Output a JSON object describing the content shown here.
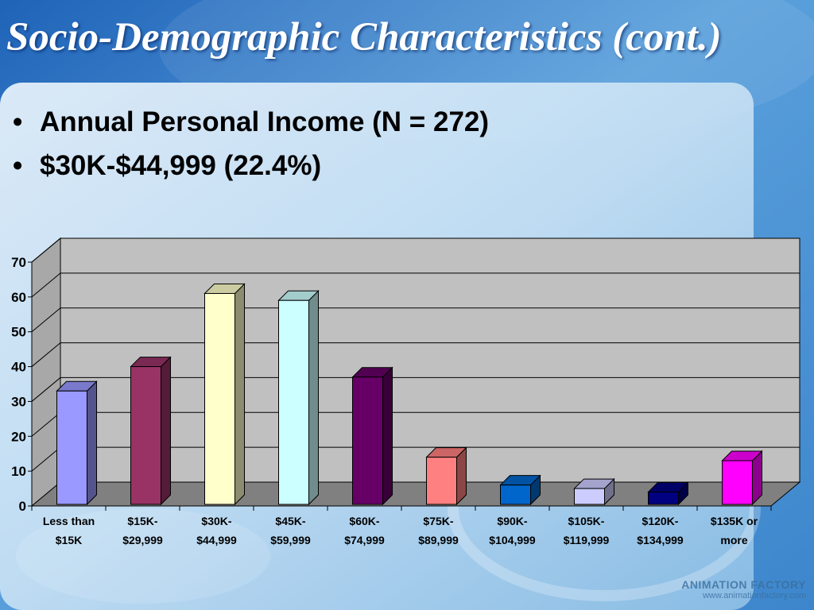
{
  "slide": {
    "title": "Socio-Demographic Characteristics (cont.)",
    "bullets": [
      "Annual Personal Income (N = 272)",
      "$30K-$44,999 (22.4%)"
    ]
  },
  "watermark": {
    "brand": "ANIMATION FACTORY",
    "url": "www.animationfactory.com"
  },
  "chart_data": {
    "type": "bar",
    "categories": [
      [
        "Less than",
        "$15K"
      ],
      [
        "$15K-",
        "$29,999"
      ],
      [
        "$30K-",
        "$44,999"
      ],
      [
        "$45K-",
        "$59,999"
      ],
      [
        "$60K-",
        "$74,999"
      ],
      [
        "$75K-",
        "$89,999"
      ],
      [
        "$90K-",
        "$104,999"
      ],
      [
        "$105K-",
        "$119,999"
      ],
      [
        "$120K-",
        "$134,999"
      ],
      [
        "$135K or",
        "more"
      ]
    ],
    "values": [
      33,
      40,
      61,
      59,
      37,
      14,
      6,
      5,
      4,
      13
    ],
    "bar_colors": [
      "#9999ff",
      "#993366",
      "#ffffcc",
      "#ccffff",
      "#660066",
      "#ff8080",
      "#0066cc",
      "#ccccff",
      "#000080",
      "#ff00ff"
    ],
    "ylim": [
      0,
      70
    ],
    "yticks": [
      0,
      10,
      20,
      30,
      40,
      50,
      60,
      70
    ],
    "grid": true,
    "plot_area_color": "#c0c0c0",
    "floor_color": "#808080"
  }
}
